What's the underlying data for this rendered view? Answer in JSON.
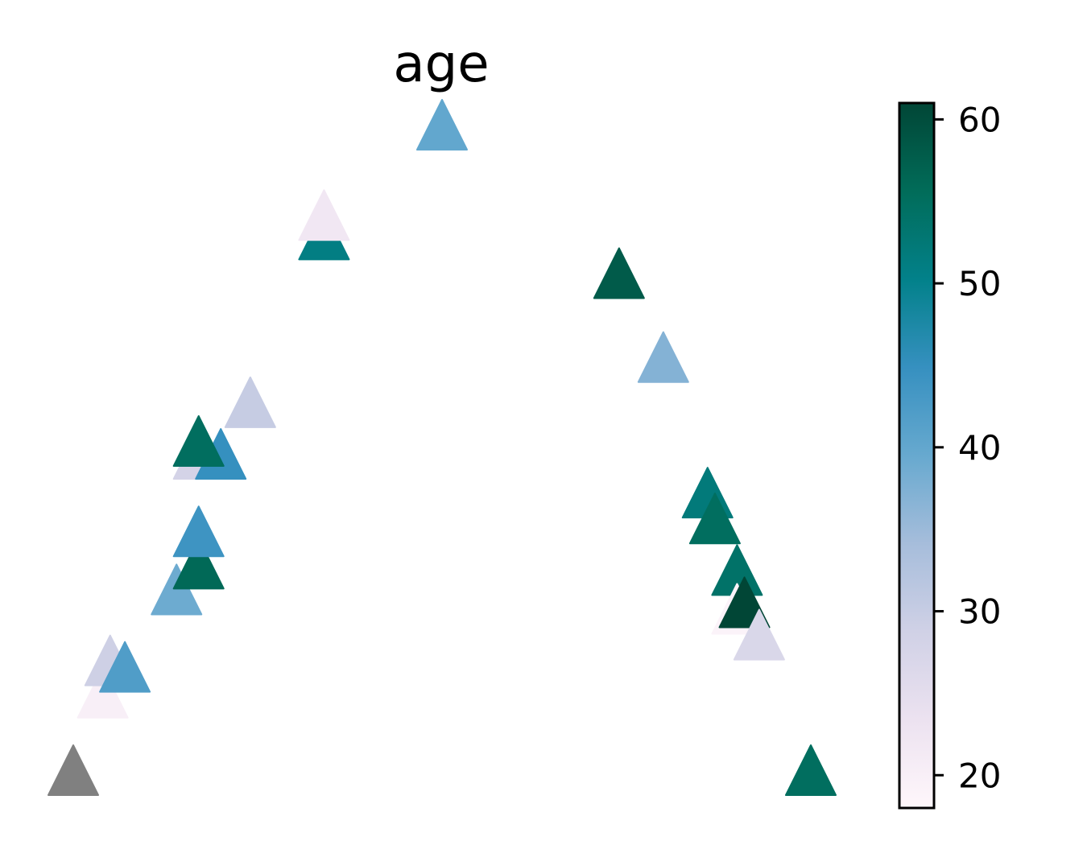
{
  "chart_data": {
    "type": "scatter",
    "title": "age",
    "xlabel": "",
    "ylabel": "",
    "marker": "triangle-up",
    "axes_visible": false,
    "grid": false,
    "missing_color": "#808080",
    "colorbar": {
      "colormap": "PuBuGn",
      "range": [
        18,
        61
      ],
      "ticks": [
        "20",
        "30",
        "40",
        "50",
        "60"
      ],
      "tick_values": [
        20,
        30,
        40,
        50,
        60
      ],
      "stops": [
        "#fff7fb",
        "#ece2f0",
        "#d0d1e6",
        "#a6bddb",
        "#67a9cf",
        "#3690c0",
        "#02818a",
        "#016c59",
        "#014636"
      ]
    },
    "points": [
      {
        "x": 0.0,
        "y": 0.0,
        "age": null
      },
      {
        "x": 0.04,
        "y": 0.12,
        "age": 20
      },
      {
        "x": 0.05,
        "y": 0.17,
        "age": 29
      },
      {
        "x": 0.07,
        "y": 0.16,
        "age": 42
      },
      {
        "x": 0.14,
        "y": 0.28,
        "age": 39
      },
      {
        "x": 0.17,
        "y": 0.32,
        "age": 56
      },
      {
        "x": 0.17,
        "y": 0.37,
        "age": 44
      },
      {
        "x": 0.17,
        "y": 0.49,
        "age": 28
      },
      {
        "x": 0.2,
        "y": 0.49,
        "age": 45
      },
      {
        "x": 0.17,
        "y": 0.51,
        "age": 55
      },
      {
        "x": 0.24,
        "y": 0.57,
        "age": 30
      },
      {
        "x": 0.34,
        "y": 0.83,
        "age": 51
      },
      {
        "x": 0.34,
        "y": 0.86,
        "age": 22
      },
      {
        "x": 0.5,
        "y": 1.0,
        "age": 40
      },
      {
        "x": 0.74,
        "y": 0.77,
        "age": 58
      },
      {
        "x": 0.8,
        "y": 0.64,
        "age": 37
      },
      {
        "x": 0.86,
        "y": 0.43,
        "age": 52
      },
      {
        "x": 0.87,
        "y": 0.39,
        "age": 55
      },
      {
        "x": 0.9,
        "y": 0.31,
        "age": 54
      },
      {
        "x": 0.9,
        "y": 0.25,
        "age": 19
      },
      {
        "x": 0.91,
        "y": 0.26,
        "age": 61
      },
      {
        "x": 0.93,
        "y": 0.21,
        "age": 27
      },
      {
        "x": 1.0,
        "y": 0.0,
        "age": 55
      }
    ]
  }
}
